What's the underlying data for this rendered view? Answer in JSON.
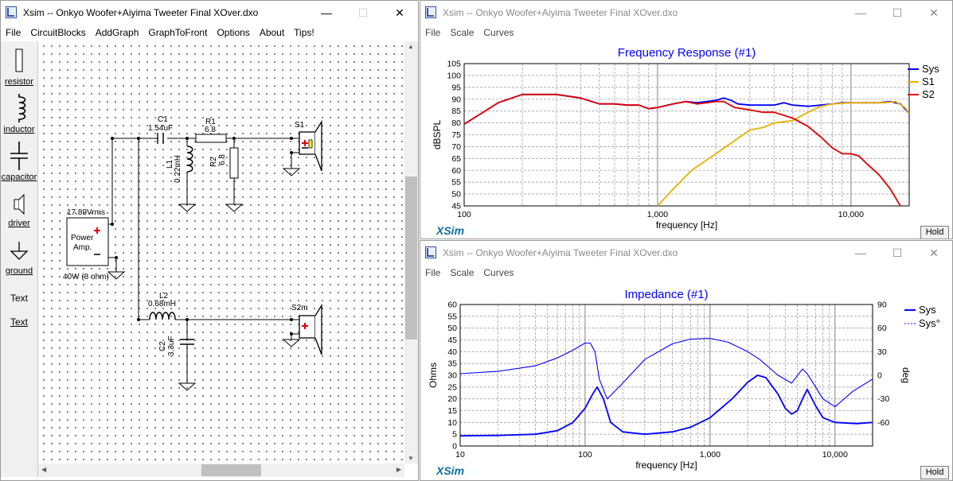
{
  "left": {
    "title": "Xsim -- Onkyo Woofer+Aiyima Tweeter Final XOver.dxo",
    "menu": [
      "File",
      "CircuitBlocks",
      "AddGraph",
      "GraphToFront",
      "Options",
      "About",
      "Tips!"
    ],
    "tools": {
      "resistor": "resistor",
      "inductor": "inductor",
      "capacitor": "capacitor",
      "driver": "driver",
      "ground": "ground",
      "text_plain": "Text",
      "text_link": "Text"
    },
    "circuit": {
      "c1_name": "C1",
      "c1_value": "1.54uF",
      "r1_name": "R1",
      "r1_value": "6.8",
      "l1_name": "L1",
      "l1_value": "0.22mH",
      "r2_name": "R2",
      "r2_value": "6.8",
      "s1_name": "S1",
      "amp_voltage": "17.89Vrms",
      "amp_label1": "Power",
      "amp_label2": "Amp.",
      "amp_power": "40W (8 ohm)",
      "l2_name": "L2",
      "l2_value": "0.68mH",
      "c2_name": "C2",
      "c2_value": "3.3uF",
      "s2_name": "S2m"
    }
  },
  "freq": {
    "title": "Xsim -- Onkyo Woofer+Aiyima Tweeter Final XOver.dxo",
    "menu": [
      "File",
      "Scale",
      "Curves"
    ],
    "hold": "Hold",
    "logo": "XSim"
  },
  "imp": {
    "title": "Xsim -- Onkyo Woofer+Aiyima Tweeter Final XOver.dxo",
    "menu": [
      "File",
      "Scale",
      "Curves"
    ],
    "hold": "Hold",
    "logo": "XSim"
  },
  "chart_data": [
    {
      "type": "line",
      "title": "Frequency Response (#1)",
      "xlabel": "frequency [Hz]",
      "ylabel": "dBSPL",
      "xscale": "log",
      "xlim": [
        100,
        20000
      ],
      "ylim": [
        45,
        105
      ],
      "xticks": [
        100,
        1000,
        10000
      ],
      "xtick_labels": [
        "100",
        "1,000",
        "10,000"
      ],
      "yticks": [
        45,
        50,
        55,
        60,
        65,
        70,
        75,
        80,
        85,
        90,
        95,
        100,
        105
      ],
      "grid": true,
      "legend_position": "right",
      "series": [
        {
          "name": "Sys",
          "color": "#0000ff",
          "points": [
            [
              100,
              79.5
            ],
            [
              120,
              83.5
            ],
            [
              150,
              88.5
            ],
            [
              200,
              92
            ],
            [
              300,
              92
            ],
            [
              400,
              90.5
            ],
            [
              500,
              88
            ],
            [
              600,
              88
            ],
            [
              700,
              87.5
            ],
            [
              800,
              87.5
            ],
            [
              900,
              86
            ],
            [
              1000,
              86.5
            ],
            [
              1200,
              88
            ],
            [
              1400,
              89
            ],
            [
              1600,
              88.5
            ],
            [
              1800,
              89
            ],
            [
              2000,
              89.5
            ],
            [
              2200,
              90.5
            ],
            [
              2400,
              89.5
            ],
            [
              2600,
              88
            ],
            [
              3000,
              87.5
            ],
            [
              3500,
              87.5
            ],
            [
              4000,
              87.5
            ],
            [
              4500,
              88.5
            ],
            [
              5000,
              87.5
            ],
            [
              6000,
              87
            ],
            [
              7000,
              87.5
            ],
            [
              8000,
              88
            ],
            [
              9000,
              88.5
            ],
            [
              10000,
              88.5
            ],
            [
              12000,
              88.5
            ],
            [
              14000,
              88.5
            ],
            [
              16000,
              89
            ],
            [
              18000,
              88
            ],
            [
              20000,
              84
            ]
          ]
        },
        {
          "name": "S1",
          "color": "#e8b000",
          "points": [
            [
              1000,
              45
            ],
            [
              1200,
              52
            ],
            [
              1500,
              60
            ],
            [
              2000,
              67
            ],
            [
              2500,
              72.5
            ],
            [
              3000,
              77
            ],
            [
              3500,
              78
            ],
            [
              4000,
              80
            ],
            [
              5000,
              81
            ],
            [
              6000,
              84.5
            ],
            [
              7000,
              87
            ],
            [
              8000,
              88
            ],
            [
              10000,
              88.5
            ],
            [
              12000,
              88.5
            ],
            [
              15000,
              88.5
            ],
            [
              17000,
              89
            ],
            [
              19000,
              86.5
            ],
            [
              20000,
              84
            ]
          ]
        },
        {
          "name": "S2",
          "color": "#e00000",
          "points": [
            [
              100,
              79.5
            ],
            [
              120,
              83.5
            ],
            [
              150,
              88.5
            ],
            [
              200,
              92
            ],
            [
              300,
              92
            ],
            [
              400,
              90.5
            ],
            [
              500,
              88
            ],
            [
              600,
              88
            ],
            [
              700,
              87.5
            ],
            [
              800,
              87.5
            ],
            [
              900,
              86
            ],
            [
              1000,
              86.5
            ],
            [
              1200,
              88
            ],
            [
              1400,
              89
            ],
            [
              1600,
              88
            ],
            [
              1800,
              88.5
            ],
            [
              2000,
              89
            ],
            [
              2200,
              89
            ],
            [
              2500,
              86.5
            ],
            [
              3000,
              85.5
            ],
            [
              3500,
              84.5
            ],
            [
              4000,
              84.5
            ],
            [
              5000,
              82
            ],
            [
              6000,
              78.5
            ],
            [
              7000,
              74
            ],
            [
              8000,
              69.5
            ],
            [
              9000,
              67
            ],
            [
              10000,
              67
            ],
            [
              11000,
              66
            ],
            [
              12000,
              63
            ],
            [
              14000,
              58
            ],
            [
              16000,
              52
            ],
            [
              18000,
              45
            ]
          ]
        }
      ]
    },
    {
      "type": "line",
      "title": "Impedance (#1)",
      "xlabel": "frequency [Hz]",
      "ylabel": "Ohms",
      "y2label": "deg",
      "xscale": "log",
      "xlim": [
        10,
        20000
      ],
      "ylim": [
        0,
        60
      ],
      "y2lim": [
        -90,
        90
      ],
      "xticks": [
        10,
        100,
        1000,
        10000
      ],
      "xtick_labels": [
        "10",
        "100",
        "1,000",
        "10,000"
      ],
      "yticks": [
        0,
        5,
        10,
        15,
        20,
        25,
        30,
        35,
        40,
        45,
        50,
        55,
        60
      ],
      "y2ticks": [
        -60,
        -30,
        0,
        30,
        60,
        90
      ],
      "grid": true,
      "legend_position": "top-right",
      "series": [
        {
          "name": "Sys",
          "color": "#0000ff",
          "style": "solid",
          "axis": "left",
          "points": [
            [
              10,
              4.3
            ],
            [
              20,
              4.5
            ],
            [
              40,
              5
            ],
            [
              60,
              6.5
            ],
            [
              80,
              10
            ],
            [
              100,
              16
            ],
            [
              115,
              22
            ],
            [
              125,
              25
            ],
            [
              140,
              20
            ],
            [
              160,
              10
            ],
            [
              200,
              6
            ],
            [
              300,
              5
            ],
            [
              500,
              6
            ],
            [
              700,
              8
            ],
            [
              1000,
              12
            ],
            [
              1500,
              20
            ],
            [
              2000,
              27
            ],
            [
              2400,
              30
            ],
            [
              2800,
              29
            ],
            [
              3500,
              22
            ],
            [
              4000,
              16
            ],
            [
              4500,
              13.5
            ],
            [
              5000,
              15
            ],
            [
              5500,
              20
            ],
            [
              6000,
              24
            ],
            [
              7000,
              17
            ],
            [
              8000,
              12
            ],
            [
              10000,
              10
            ],
            [
              15000,
              9.5
            ],
            [
              20000,
              10
            ]
          ]
        },
        {
          "name": "Sys°",
          "color": "#0000ff",
          "style": "dashed",
          "axis": "right",
          "points": [
            [
              10,
              2
            ],
            [
              20,
              5
            ],
            [
              40,
              12
            ],
            [
              60,
              22
            ],
            [
              80,
              32
            ],
            [
              100,
              41
            ],
            [
              110,
              41
            ],
            [
              120,
              30
            ],
            [
              130,
              -5
            ],
            [
              150,
              -30
            ],
            [
              200,
              -10
            ],
            [
              300,
              20
            ],
            [
              500,
              40
            ],
            [
              700,
              46
            ],
            [
              1000,
              47
            ],
            [
              1400,
              42
            ],
            [
              2000,
              30
            ],
            [
              2500,
              20
            ],
            [
              3500,
              0
            ],
            [
              4500,
              -10
            ],
            [
              5500,
              8
            ],
            [
              6000,
              2
            ],
            [
              7000,
              -15
            ],
            [
              8000,
              -30
            ],
            [
              10000,
              -40
            ],
            [
              14000,
              -20
            ],
            [
              20000,
              -5
            ]
          ]
        }
      ]
    }
  ]
}
